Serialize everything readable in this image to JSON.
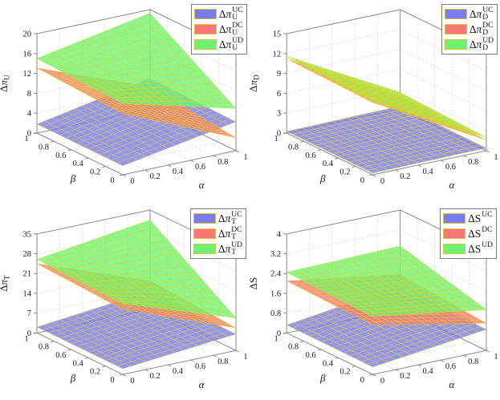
{
  "figure": {
    "background": "#ffffff",
    "layout": "2x2 grid of 3D surface plots"
  },
  "colors": {
    "uc": "#7b7bf0",
    "dc": "#f87878",
    "ud": "#6ff26f",
    "mesh_line": "#e3d42c",
    "axis": "#8a8a8a",
    "wall_grid": "#b5b5b5",
    "text": "#1a1a1a",
    "legend_border": "#7a7a7a",
    "swatch_border": "#dcc23c"
  },
  "chart_data": [
    {
      "type": "surface",
      "position": "top-left",
      "xlabel": "α",
      "ylabel": "β",
      "zlabel": {
        "delta": "Δ",
        "symbol": "π",
        "sub": "U"
      },
      "xlim": [
        0,
        1
      ],
      "ylim": [
        0,
        1
      ],
      "zlim": [
        0,
        20
      ],
      "xticks": [
        "0",
        "0.2",
        "0.4",
        "0.6",
        "0.8",
        "1"
      ],
      "yticks": [
        "0",
        "0.2",
        "0.4",
        "0.6",
        "0.8",
        "1"
      ],
      "zticks": [
        "0",
        "4",
        "8",
        "12",
        "16",
        "20"
      ],
      "grid": "dotted back walls and floor",
      "legend_position": "top-right",
      "series": [
        {
          "label": {
            "delta": "Δ",
            "symbol": "π",
            "sub": "U",
            "sup": "UC"
          },
          "color_key": "uc",
          "corner_z": {
            "alpha0_beta0": 1.8,
            "alpha1_beta0": 5.8,
            "alpha0_beta1": 1.8,
            "alpha1_beta1": 6.2
          }
        },
        {
          "label": {
            "delta": "Δ",
            "symbol": "π",
            "sub": "U",
            "sup": "DC"
          },
          "color_key": "dc",
          "corner_z": {
            "alpha0_beta0": 12.3,
            "alpha1_beta0": 2.6,
            "alpha0_beta1": 13.1,
            "alpha1_beta1": 4.5
          }
        },
        {
          "label": {
            "delta": "Δ",
            "symbol": "π",
            "sub": "U",
            "sup": "UD"
          },
          "color_key": "ud",
          "corner_z": {
            "alpha0_beta0": 14.3,
            "alpha1_beta0": 8.5,
            "alpha0_beta1": 15.0,
            "alpha1_beta1": 19.3
          }
        }
      ]
    },
    {
      "type": "surface",
      "position": "top-right",
      "xlabel": "α",
      "ylabel": "β",
      "zlabel": {
        "delta": "Δ",
        "symbol": "π",
        "sub": "D"
      },
      "xlim": [
        0,
        1
      ],
      "ylim": [
        0,
        1
      ],
      "zlim": [
        0,
        15
      ],
      "xticks": [
        "0",
        "0.2",
        "0.4",
        "0.6",
        "0.8",
        "1"
      ],
      "yticks": [
        "0",
        "0.2",
        "0.4",
        "0.6",
        "0.8",
        "1"
      ],
      "zticks": [
        "0",
        "3",
        "6",
        "9",
        "12",
        "15"
      ],
      "grid": "dotted back walls and floor",
      "legend_position": "top-right",
      "series": [
        {
          "label": {
            "delta": "Δ",
            "symbol": "π",
            "sub": "D",
            "sup": "UC"
          },
          "color_key": "uc",
          "corner_z": {
            "alpha0_beta0": 0.25,
            "alpha1_beta0": 0.4,
            "alpha0_beta1": 0.25,
            "alpha1_beta1": 0.45
          }
        },
        {
          "label": {
            "delta": "Δ",
            "symbol": "π",
            "sub": "D",
            "sup": "DC"
          },
          "color_key": "dc",
          "corner_z": {
            "alpha0_beta0": 10.9,
            "alpha1_beta0": 1.6,
            "alpha0_beta1": 11.2,
            "alpha1_beta1": 1.9
          }
        },
        {
          "label": {
            "delta": "Δ",
            "symbol": "π",
            "sub": "D",
            "sup": "UD"
          },
          "color_key": "ud",
          "corner_z": {
            "alpha0_beta0": 11.2,
            "alpha1_beta0": 2.0,
            "alpha0_beta1": 11.6,
            "alpha1_beta1": 2.5
          }
        }
      ]
    },
    {
      "type": "surface",
      "position": "bottom-left",
      "xlabel": "α",
      "ylabel": "β",
      "zlabel": {
        "delta": "Δ",
        "symbol": "π",
        "sub": "T"
      },
      "xlim": [
        0,
        1
      ],
      "ylim": [
        0,
        1
      ],
      "zlim": [
        0,
        35
      ],
      "xticks": [
        "0",
        "0.2",
        "0.4",
        "0.6",
        "0.8",
        "1"
      ],
      "yticks": [
        "0",
        "0.2",
        "0.4",
        "0.6",
        "0.8",
        "1"
      ],
      "zticks": [
        "0",
        "7",
        "14",
        "21",
        "28",
        "35"
      ],
      "grid": "dotted back walls and floor",
      "legend_position": "top-right",
      "series": [
        {
          "label": {
            "delta": "Δ",
            "symbol": "π",
            "sub": "T",
            "sup": "UC"
          },
          "color_key": "uc",
          "corner_z": {
            "alpha0_beta0": 2.0,
            "alpha1_beta0": 5.8,
            "alpha0_beta1": 2.1,
            "alpha1_beta1": 6.3
          }
        },
        {
          "label": {
            "delta": "Δ",
            "symbol": "π",
            "sub": "T",
            "sup": "DC"
          },
          "color_key": "dc",
          "corner_z": {
            "alpha0_beta0": 23.0,
            "alpha1_beta0": 8.0,
            "alpha0_beta1": 24.5,
            "alpha1_beta1": 10.0
          }
        },
        {
          "label": {
            "delta": "Δ",
            "symbol": "π",
            "sub": "T",
            "sup": "UD"
          },
          "color_key": "ud",
          "corner_z": {
            "alpha0_beta0": 25.0,
            "alpha1_beta0": 11.5,
            "alpha0_beta1": 26.0,
            "alpha1_beta1": 31.5
          }
        }
      ]
    },
    {
      "type": "surface",
      "position": "bottom-right",
      "xlabel": "α",
      "ylabel": "β",
      "zlabel": {
        "delta": "Δ",
        "symbol": "S",
        "sub": ""
      },
      "xlim": [
        0,
        1
      ],
      "ylim": [
        0,
        1
      ],
      "zlim": [
        0,
        4
      ],
      "xticks": [
        "0",
        "0.2",
        "0.4",
        "0.6",
        "0.8",
        "1"
      ],
      "yticks": [
        "0",
        "0.2",
        "0.4",
        "0.6",
        "0.8",
        "1"
      ],
      "zticks": [
        "0",
        "0.8",
        "1.6",
        "2.4",
        "3.2",
        "4"
      ],
      "grid": "dotted back walls and floor",
      "legend_position": "top-right",
      "series": [
        {
          "label": {
            "delta": "Δ",
            "symbol": "S",
            "sub": "",
            "sup": "UC"
          },
          "color_key": "uc",
          "corner_z": {
            "alpha0_beta0": 0.3,
            "alpha1_beta0": 0.85,
            "alpha0_beta1": 0.32,
            "alpha1_beta1": 0.95
          }
        },
        {
          "label": {
            "delta": "Δ",
            "symbol": "S",
            "sub": "",
            "sup": "DC"
          },
          "color_key": "dc",
          "corner_z": {
            "alpha0_beta0": 2.0,
            "alpha1_beta0": 1.1,
            "alpha0_beta1": 2.1,
            "alpha1_beta1": 1.4
          }
        },
        {
          "label": {
            "delta": "Δ",
            "symbol": "S",
            "sub": "",
            "sup": "UD"
          },
          "color_key": "ud",
          "corner_z": {
            "alpha0_beta0": 2.35,
            "alpha1_beta0": 1.65,
            "alpha0_beta1": 2.45,
            "alpha1_beta1": 2.55
          }
        }
      ]
    }
  ]
}
